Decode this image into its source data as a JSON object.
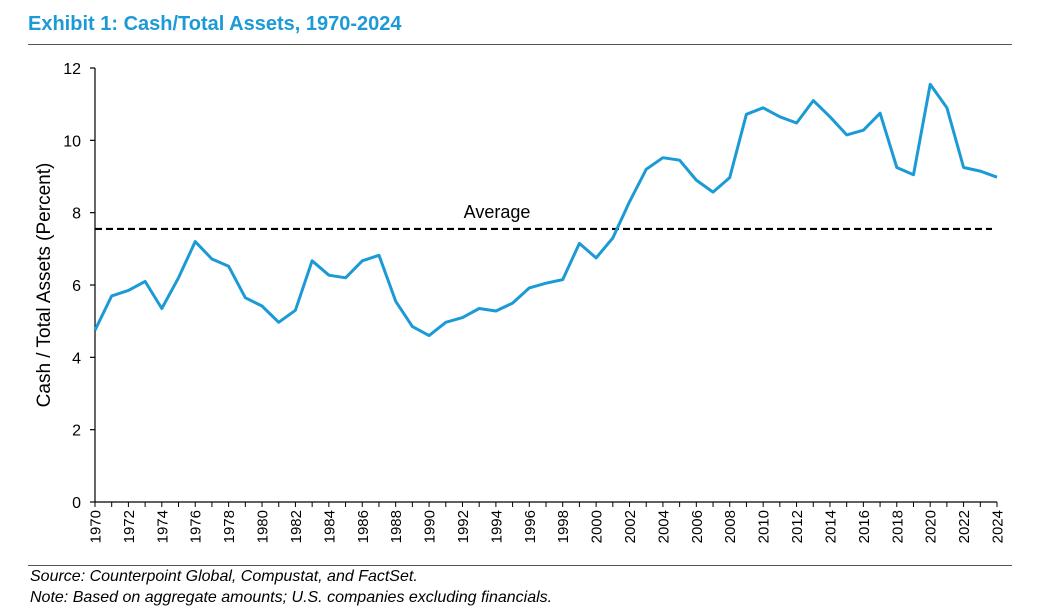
{
  "header": {
    "title": "Exhibit 1: Cash/Total Assets, 1970-2024"
  },
  "footer": {
    "source": "Source: Counterpoint Global, Compustat, and FactSet.",
    "note": "Note: Based on aggregate amounts; U.S. companies excluding financials."
  },
  "chart_data": {
    "type": "line",
    "title": "Exhibit 1: Cash/Total Assets, 1970-2024",
    "xlabel": "",
    "ylabel": "Cash / Total Assets (Percent)",
    "ylim": [
      0,
      12
    ],
    "yticks": [
      0,
      2,
      4,
      6,
      8,
      10,
      12
    ],
    "xlim": [
      1970,
      2024
    ],
    "xticks": [
      1970,
      1972,
      1974,
      1976,
      1978,
      1980,
      1982,
      1984,
      1986,
      1988,
      1990,
      1992,
      1994,
      1996,
      1998,
      2000,
      2002,
      2004,
      2006,
      2008,
      2010,
      2012,
      2014,
      2016,
      2018,
      2020,
      2022,
      2024
    ],
    "grid": false,
    "line_color": "#1c9ad6",
    "series": [
      {
        "x": [
          1970,
          1971,
          1972,
          1973,
          1974,
          1975,
          1976,
          1977,
          1978,
          1979,
          1980,
          1981,
          1982,
          1983,
          1984,
          1985,
          1986,
          1987,
          1988,
          1989,
          1990,
          1991,
          1992,
          1993,
          1994,
          1995,
          1996,
          1997,
          1998,
          1999,
          2000,
          2001,
          2002,
          2003,
          2004,
          2005,
          2006,
          2007,
          2008,
          2009,
          2010,
          2011,
          2012,
          2013,
          2014,
          2015,
          2016,
          2017,
          2018,
          2019,
          2020,
          2021,
          2022,
          2023,
          2024
        ],
        "values": [
          4.75,
          5.7,
          5.85,
          6.1,
          5.35,
          6.2,
          7.2,
          6.72,
          6.52,
          5.65,
          5.42,
          4.97,
          5.3,
          6.67,
          6.27,
          6.2,
          6.67,
          6.82,
          5.55,
          4.85,
          4.6,
          4.97,
          5.1,
          5.35,
          5.28,
          5.5,
          5.92,
          6.05,
          6.15,
          7.15,
          6.75,
          7.3,
          8.3,
          9.2,
          9.52,
          9.45,
          8.9,
          8.57,
          8.97,
          10.72,
          10.9,
          10.65,
          10.48,
          11.1,
          10.65,
          10.15,
          10.28,
          10.75,
          9.25,
          9.05,
          11.55,
          10.9,
          9.25,
          9.15,
          8.98
        ]
      }
    ],
    "reference_line": {
      "label": "Average",
      "value": 7.55,
      "style": "dashed",
      "color": "#000000"
    }
  }
}
